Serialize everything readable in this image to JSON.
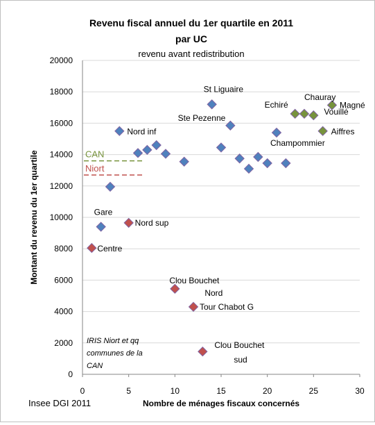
{
  "chart_data": {
    "type": "scatter",
    "title": "Revenu fiscal annuel du 1er quartile en 2011",
    "title_line2": "par UC",
    "subtitle": "revenu avant redistribution",
    "xlabel": "Nombre de ménages fiscaux concernés",
    "ylabel": "Montant du revenu du 1er quartile",
    "xlim": [
      0,
      30
    ],
    "ylim": [
      0,
      20000
    ],
    "x_ticks": [
      "0",
      "5",
      "10",
      "15",
      "20",
      "25",
      "30"
    ],
    "y_ticks": [
      "0",
      "2000",
      "4000",
      "6000",
      "8000",
      "10000",
      "12000",
      "14000",
      "16000",
      "18000",
      "20000"
    ],
    "grid": true,
    "source": "Insee DGI 2011",
    "note_lines": [
      "IRIS Niort et qq",
      "communes de la",
      "CAN"
    ],
    "colors": {
      "blue": "#4f81bd",
      "red": "#c0504d",
      "green": "#77933c",
      "edge": "#8064a2",
      "can_line": "#77933c",
      "niort_line": "#c0504d"
    },
    "reference_lines": [
      {
        "label": "CAN",
        "y": 13600,
        "color": "green"
      },
      {
        "label": "Niort",
        "y": 12700,
        "color": "red"
      }
    ],
    "series": [
      {
        "color": "blue",
        "points": [
          {
            "x": 2,
            "y": 9400,
            "label": "Gare"
          },
          {
            "x": 3,
            "y": 11950,
            "label": ""
          },
          {
            "x": 4,
            "y": 15500,
            "label": "Nord inf"
          },
          {
            "x": 6,
            "y": 14100,
            "label": ""
          },
          {
            "x": 7,
            "y": 14300,
            "label": ""
          },
          {
            "x": 8,
            "y": 14600,
            "label": ""
          },
          {
            "x": 9,
            "y": 14050,
            "label": ""
          },
          {
            "x": 11,
            "y": 13550,
            "label": ""
          },
          {
            "x": 14,
            "y": 17200,
            "label": "St Liguaire"
          },
          {
            "x": 15,
            "y": 14450,
            "label": ""
          },
          {
            "x": 16,
            "y": 15850,
            "label": "Ste Pezenne"
          },
          {
            "x": 17,
            "y": 13750,
            "label": ""
          },
          {
            "x": 18,
            "y": 13100,
            "label": ""
          },
          {
            "x": 19,
            "y": 13850,
            "label": ""
          },
          {
            "x": 20,
            "y": 13450,
            "label": ""
          },
          {
            "x": 21,
            "y": 15400,
            "label": "Champommier"
          },
          {
            "x": 22,
            "y": 13450,
            "label": ""
          }
        ]
      },
      {
        "color": "red",
        "points": [
          {
            "x": 1,
            "y": 8050,
            "label": "Centre"
          },
          {
            "x": 5,
            "y": 9650,
            "label": "Nord sup"
          },
          {
            "x": 10,
            "y": 5450,
            "label": "Clou Bouchet Nord"
          },
          {
            "x": 12,
            "y": 4300,
            "label": "Tour Chabot G"
          },
          {
            "x": 13,
            "y": 1450,
            "label": "Clou Bouchet sud"
          }
        ]
      },
      {
        "color": "green",
        "points": [
          {
            "x": 23,
            "y": 16600,
            "label": "Echiré"
          },
          {
            "x": 24,
            "y": 16600,
            "label": "Chauray"
          },
          {
            "x": 25,
            "y": 16500,
            "label": "Vouillé"
          },
          {
            "x": 26,
            "y": 15500,
            "label": "Aiffres"
          },
          {
            "x": 27,
            "y": 17150,
            "label": "Magné"
          }
        ]
      }
    ]
  }
}
